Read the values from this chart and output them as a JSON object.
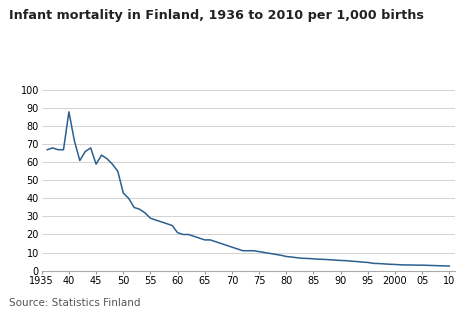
{
  "title": "Infant mortality in Finland, 1936 to 2010 per 1,000 births",
  "source": "Source: Statistics Finland",
  "line_color": "#2b5f8e",
  "background_color": "#ffffff",
  "grid_color": "#cccccc",
  "ylim": [
    0,
    100
  ],
  "yticks": [
    0,
    10,
    20,
    30,
    40,
    50,
    60,
    70,
    80,
    90,
    100
  ],
  "xtick_labels": [
    "1935",
    "40",
    "45",
    "50",
    "55",
    "60",
    "65",
    "70",
    "75",
    "80",
    "85",
    "90",
    "95",
    "2000",
    "05",
    "10"
  ],
  "xtick_positions": [
    1935,
    1940,
    1945,
    1950,
    1955,
    1960,
    1965,
    1970,
    1975,
    1980,
    1985,
    1990,
    1995,
    2000,
    2005,
    2010
  ],
  "years": [
    1936,
    1937,
    1938,
    1939,
    1940,
    1941,
    1942,
    1943,
    1944,
    1945,
    1946,
    1947,
    1948,
    1949,
    1950,
    1951,
    1952,
    1953,
    1954,
    1955,
    1956,
    1957,
    1958,
    1959,
    1960,
    1961,
    1962,
    1963,
    1964,
    1965,
    1966,
    1967,
    1968,
    1969,
    1970,
    1971,
    1972,
    1973,
    1974,
    1975,
    1976,
    1977,
    1978,
    1979,
    1980,
    1981,
    1982,
    1983,
    1984,
    1985,
    1986,
    1987,
    1988,
    1989,
    1990,
    1991,
    1992,
    1993,
    1994,
    1995,
    1996,
    1997,
    1998,
    1999,
    2000,
    2001,
    2002,
    2003,
    2004,
    2005,
    2006,
    2007,
    2008,
    2009,
    2010
  ],
  "values": [
    67,
    68,
    67,
    67,
    88,
    72,
    61,
    66,
    68,
    59,
    64,
    62,
    59,
    55,
    43,
    40,
    35,
    34,
    32,
    29,
    28,
    27,
    26,
    25,
    21,
    20,
    20,
    19,
    18,
    17,
    17,
    16,
    15,
    14,
    13,
    12,
    11,
    11,
    11,
    10.5,
    10,
    9.5,
    9,
    8.5,
    7.8,
    7.5,
    7.1,
    6.8,
    6.7,
    6.5,
    6.3,
    6.2,
    6.0,
    5.8,
    5.6,
    5.5,
    5.2,
    5.0,
    4.7,
    4.5,
    4.0,
    3.9,
    3.7,
    3.5,
    3.4,
    3.2,
    3.1,
    3.1,
    3.0,
    3.0,
    2.9,
    2.8,
    2.7,
    2.6,
    2.5
  ]
}
